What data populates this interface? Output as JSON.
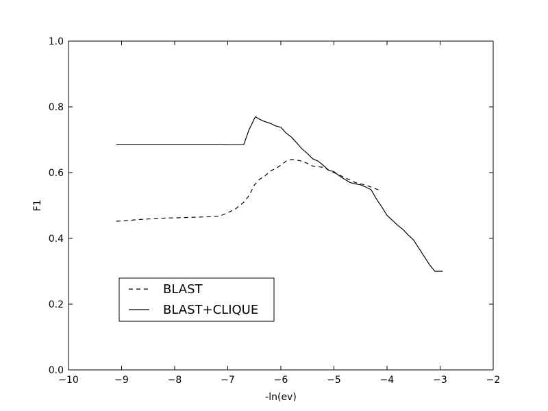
{
  "chart_data": {
    "type": "line",
    "title": "",
    "xlabel": "-ln(ev)",
    "ylabel": "F1",
    "xlim": [
      -10,
      -2
    ],
    "ylim": [
      0.0,
      1.0
    ],
    "x_ticks": [
      "−10",
      "−9",
      "−8",
      "−7",
      "−6",
      "−5",
      "−4",
      "−3",
      "−2"
    ],
    "x_tick_values": [
      -10,
      -9,
      -8,
      -7,
      -6,
      -5,
      -4,
      -3,
      -2
    ],
    "y_ticks": [
      "0.0",
      "0.2",
      "0.4",
      "0.6",
      "0.8",
      "1.0"
    ],
    "y_tick_values": [
      0.0,
      0.2,
      0.4,
      0.6,
      0.8,
      1.0
    ],
    "grid": false,
    "legend_position": "lower-left",
    "series": [
      {
        "name": "BLAST",
        "style": "dashed",
        "color": "#000000",
        "x": [
          -9.1,
          -8.9,
          -8.7,
          -8.5,
          -8.3,
          -8.1,
          -7.9,
          -7.7,
          -7.5,
          -7.3,
          -7.15,
          -7.0,
          -6.85,
          -6.7,
          -6.6,
          -6.5,
          -6.4,
          -6.3,
          -6.2,
          -6.1,
          -6.0,
          -5.9,
          -5.8,
          -5.7,
          -5.6,
          -5.5,
          -5.4,
          -5.3,
          -5.2,
          -5.1,
          -5.0,
          -4.9,
          -4.8,
          -4.7,
          -4.6,
          -4.5,
          -4.4,
          -4.3,
          -4.2,
          -4.15
        ],
        "y": [
          0.452,
          0.454,
          0.457,
          0.459,
          0.461,
          0.462,
          0.463,
          0.464,
          0.465,
          0.466,
          0.468,
          0.478,
          0.49,
          0.51,
          0.53,
          0.562,
          0.58,
          0.59,
          0.605,
          0.612,
          0.623,
          0.635,
          0.64,
          0.638,
          0.635,
          0.628,
          0.62,
          0.618,
          0.616,
          0.608,
          0.6,
          0.593,
          0.585,
          0.578,
          0.57,
          0.566,
          0.562,
          0.556,
          0.55,
          0.547
        ]
      },
      {
        "name": "BLAST+CLIQUE",
        "style": "solid",
        "color": "#000000",
        "x": [
          -9.1,
          -8.5,
          -8.0,
          -7.5,
          -7.1,
          -7.0,
          -6.85,
          -6.7,
          -6.6,
          -6.48,
          -6.4,
          -6.3,
          -6.2,
          -6.1,
          -6.0,
          -5.9,
          -5.8,
          -5.7,
          -5.6,
          -5.5,
          -5.4,
          -5.3,
          -5.2,
          -5.1,
          -5.0,
          -4.9,
          -4.8,
          -4.7,
          -4.6,
          -4.5,
          -4.4,
          -4.3,
          -4.2,
          -4.1,
          -4.0,
          -3.9,
          -3.8,
          -3.7,
          -3.6,
          -3.5,
          -3.4,
          -3.3,
          -3.2,
          -3.1,
          -3.0,
          -2.95
        ],
        "y": [
          0.686,
          0.686,
          0.686,
          0.686,
          0.686,
          0.685,
          0.685,
          0.685,
          0.73,
          0.77,
          0.762,
          0.755,
          0.75,
          0.742,
          0.738,
          0.72,
          0.708,
          0.69,
          0.672,
          0.658,
          0.642,
          0.635,
          0.622,
          0.607,
          0.603,
          0.59,
          0.58,
          0.57,
          0.566,
          0.563,
          0.556,
          0.548,
          0.52,
          0.496,
          0.47,
          0.455,
          0.44,
          0.427,
          0.41,
          0.395,
          0.37,
          0.345,
          0.32,
          0.3,
          0.3,
          0.3
        ]
      }
    ]
  }
}
